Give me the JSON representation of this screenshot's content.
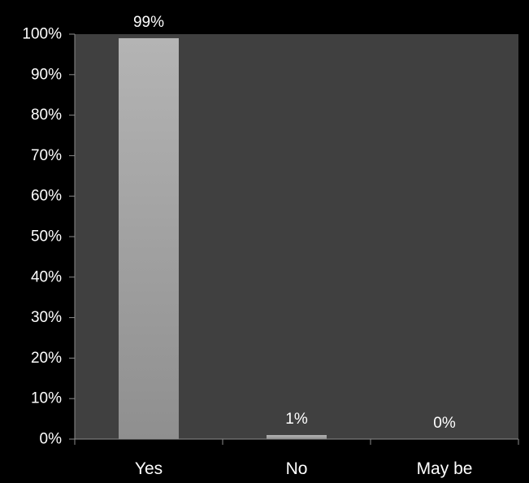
{
  "chart_data": {
    "type": "bar",
    "title": "",
    "xlabel": "",
    "ylabel": "",
    "categories": [
      "Yes",
      "No",
      "May be"
    ],
    "values": [
      99,
      1,
      0
    ],
    "data_labels": [
      "99%",
      "1%",
      "0%"
    ],
    "ylim": [
      0,
      100
    ],
    "yticks": [
      0,
      10,
      20,
      30,
      40,
      50,
      60,
      70,
      80,
      90,
      100
    ],
    "ytick_labels": [
      "0%",
      "10%",
      "20%",
      "30%",
      "40%",
      "50%",
      "60%",
      "70%",
      "80%",
      "90%",
      "100%"
    ],
    "grid": false,
    "legend": "none"
  },
  "colors": {
    "page_background": "#000000",
    "plot_background": "#404040",
    "bar_fill_top": "#b4b4b4",
    "bar_fill_bottom": "#8f8f8f",
    "axis": "#8c8c8c",
    "text": "#ffffff"
  }
}
